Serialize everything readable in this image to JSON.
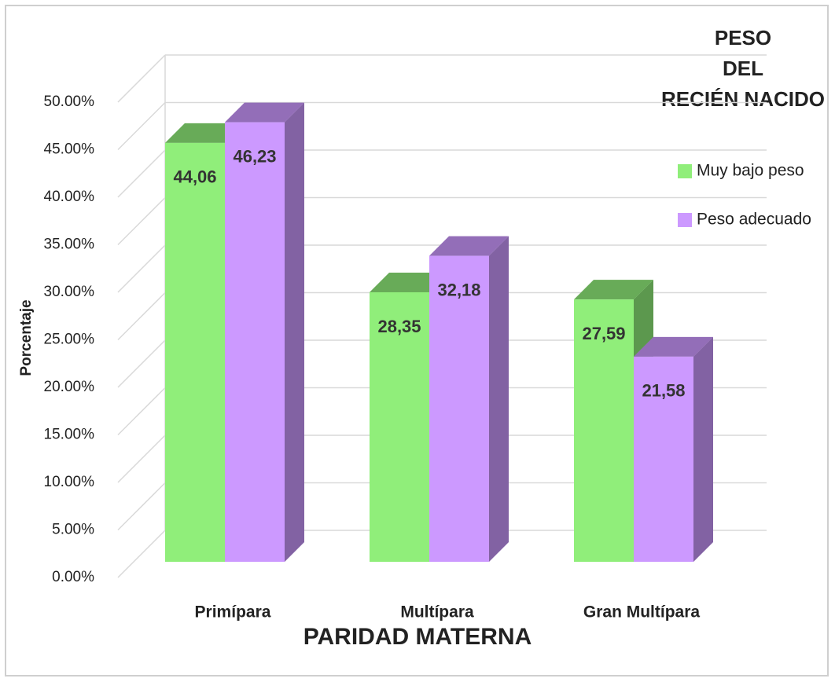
{
  "chart_data": {
    "type": "bar3d",
    "legend_title": [
      "PESO",
      "DEL",
      "RECIÉN NACIDO"
    ],
    "y_label": "Porcentaje",
    "x_label": "PARIDAD MATERNA",
    "categories": [
      "Primípara",
      "Multípara",
      "Gran Multípara"
    ],
    "series": [
      {
        "name": "Muy bajo peso",
        "color": "#90ee7a",
        "values": [
          44.06,
          28.35,
          27.59
        ],
        "value_labels": [
          "44,06",
          "28,35",
          "27,59"
        ]
      },
      {
        "name": "Peso adecuado",
        "color": "#cc99ff",
        "values": [
          46.23,
          32.18,
          21.58
        ],
        "value_labels": [
          "46,23",
          "32,18",
          "21,58"
        ]
      }
    ],
    "ylim": [
      0,
      50
    ],
    "yticks": [
      {
        "value": 0,
        "label": "0.00%"
      },
      {
        "value": 5,
        "label": "5.00%"
      },
      {
        "value": 10,
        "label": "10.00%"
      },
      {
        "value": 15,
        "label": "15.00%"
      },
      {
        "value": 20,
        "label": "20.00%"
      },
      {
        "value": 25,
        "label": "25.00%"
      },
      {
        "value": 30,
        "label": "30.00%"
      },
      {
        "value": 35,
        "label": "35.00%"
      },
      {
        "value": 40,
        "label": "40.00%"
      },
      {
        "value": 45,
        "label": "45.00%"
      },
      {
        "value": 50,
        "label": "50.00%"
      }
    ],
    "grid": true,
    "legend": "right"
  }
}
